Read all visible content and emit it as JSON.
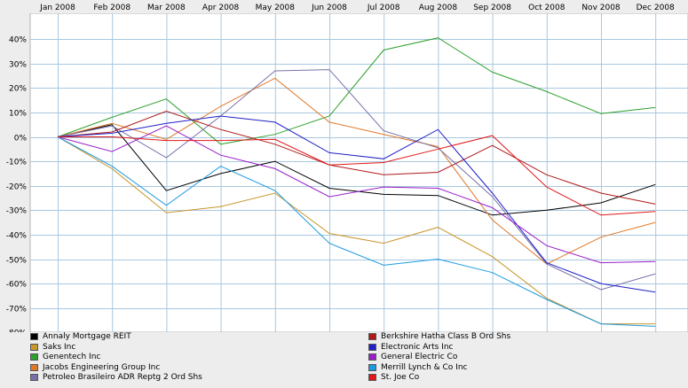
{
  "chart_data": {
    "type": "line",
    "title": "",
    "xlabel": "",
    "ylabel": "",
    "categories": [
      "Jan 2008",
      "Feb 2008",
      "Mar 2008",
      "Apr 2008",
      "May 2008",
      "Jun 2008",
      "Jul 2008",
      "Aug 2008",
      "Sep 2008",
      "Oct 2008",
      "Nov 2008",
      "Dec 2008"
    ],
    "y_ticks": [
      "40%",
      "30%",
      "20%",
      "10%",
      "0%",
      "-10%",
      "-20%",
      "-30%",
      "-40%",
      "-50%",
      "-60%",
      "-70%",
      "-80%"
    ],
    "ylim": [
      -80,
      45
    ],
    "y_unit": "%",
    "grid": true,
    "x_axis_position": "top",
    "legend_position": "bottom",
    "series": [
      {
        "name": "Annaly Mortgage REIT",
        "color": "#000000",
        "values": [
          0,
          5,
          -22,
          -15,
          -10,
          -21,
          -23.5,
          -24,
          -32,
          -30,
          -27,
          -19.5
        ]
      },
      {
        "name": "Saks Inc",
        "color": "#c8962a",
        "values": [
          0,
          -13,
          -31,
          -28.5,
          -23,
          -39.5,
          -43.5,
          -37,
          -49,
          -66,
          -76.5,
          -76.5
        ]
      },
      {
        "name": "Genentech Inc",
        "color": "#2ea02e",
        "values": [
          0,
          8,
          15.5,
          -3,
          1,
          8.5,
          35.5,
          40.5,
          26.5,
          18.5,
          9.5,
          12
        ]
      },
      {
        "name": "Jacobs Engineering Group Inc",
        "color": "#e07828",
        "values": [
          0,
          5.5,
          -1,
          12.5,
          24,
          6,
          1,
          -4,
          -34,
          -52,
          -41,
          -35
        ]
      },
      {
        "name": "Petroleo Brasileiro ADR Reptg 2 Ord Shs",
        "color": "#7a70a8",
        "values": [
          0,
          4.5,
          -8.5,
          8.5,
          27,
          27.5,
          2.5,
          -4.5,
          -24.5,
          -52,
          -62.5,
          -56
        ]
      },
      {
        "name": "Berkshire Hatha Class B Ord Shs",
        "color": "#b01818",
        "values": [
          0,
          2,
          10.5,
          3,
          -3,
          -11.5,
          -15.5,
          -14.5,
          -3.5,
          -15.5,
          -23,
          -27.5
        ]
      },
      {
        "name": "Electronic Arts Inc",
        "color": "#2020c8",
        "values": [
          0,
          1.5,
          5.5,
          8.5,
          6,
          -6.5,
          -9,
          3,
          -23,
          -51.5,
          -60,
          -63.5
        ]
      },
      {
        "name": "General Electric Co",
        "color": "#9a1ec8",
        "values": [
          0,
          -6,
          4.5,
          -7.5,
          -13,
          -24.5,
          -20.5,
          -21,
          -29,
          -44.5,
          -51.5,
          -51
        ]
      },
      {
        "name": "Merrill Lynch & Co Inc",
        "color": "#1c9ae0",
        "values": [
          0,
          -12,
          -28,
          -12,
          -22,
          -43.5,
          -52.5,
          -50,
          -55.5,
          -66.5,
          -76.5,
          -77.5
        ]
      },
      {
        "name": "St. Joe Co",
        "color": "#e01818",
        "values": [
          0,
          0,
          -1.5,
          -1.5,
          -1,
          -11.5,
          -10.5,
          -5,
          0.5,
          -20.5,
          -32,
          -30.5
        ]
      }
    ]
  }
}
